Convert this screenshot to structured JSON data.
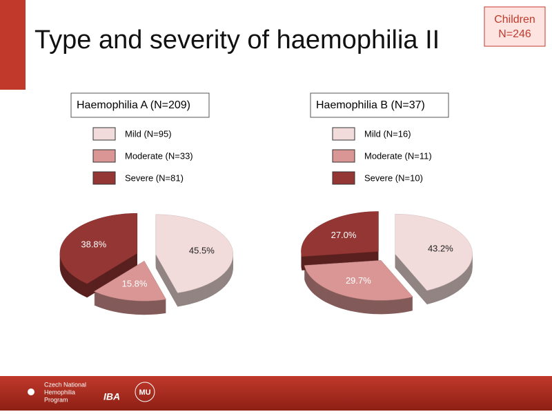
{
  "title": "Type and severity of haemophilia II",
  "badge": [
    "Children",
    "N=246"
  ],
  "footer": {
    "program": [
      "Czech National",
      "Hemophilia",
      "Program"
    ],
    "logos": [
      "IBA",
      "MU"
    ]
  },
  "chart_data": [
    {
      "type": "pie",
      "title": "Haemophilia A (N=209)",
      "categories": [
        "Mild (N=95)",
        "Moderate (N=33)",
        "Severe (N=81)"
      ],
      "values": [
        45.5,
        15.8,
        38.8
      ],
      "value_labels": [
        "45.5%",
        "15.8%",
        "38.8%"
      ],
      "colors": [
        "#f2dcdb",
        "#d99694",
        "#943634"
      ]
    },
    {
      "type": "pie",
      "title": "Haemophilia B (N=37)",
      "categories": [
        "Mild (N=16)",
        "Moderate (N=11)",
        "Severe (N=10)"
      ],
      "values": [
        43.2,
        29.7,
        27.0
      ],
      "value_labels": [
        "43.2%",
        "29.7%",
        "27.0%"
      ],
      "colors": [
        "#f2dcdb",
        "#d99694",
        "#943634"
      ]
    }
  ]
}
